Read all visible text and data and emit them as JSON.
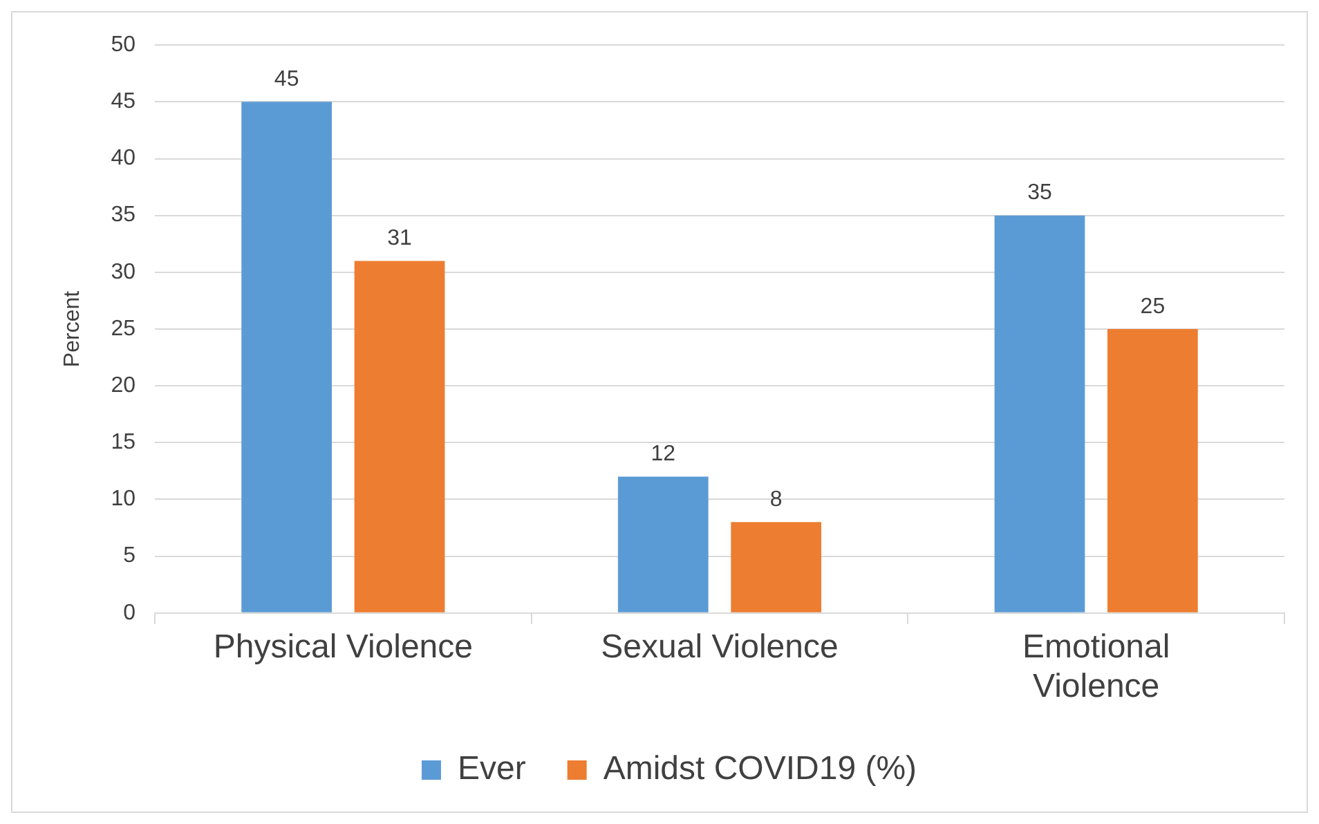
{
  "chart_data": {
    "type": "bar",
    "ylabel": "Percent",
    "categories": [
      "Physical Violence",
      "Sexual Violence",
      "Emotional Violence"
    ],
    "series": [
      {
        "name": "Ever",
        "color": "#5b9bd5",
        "values": [
          45,
          12,
          35
        ]
      },
      {
        "name": "Amidst COVID19 (%)",
        "color": "#ed7d31",
        "values": [
          31,
          8,
          25
        ]
      }
    ],
    "ylim": [
      0,
      50
    ],
    "yticks": [
      0,
      5,
      10,
      15,
      20,
      25,
      30,
      35,
      40,
      45,
      50
    ],
    "grid": "y",
    "legend": "bottom",
    "data_labels": true
  }
}
